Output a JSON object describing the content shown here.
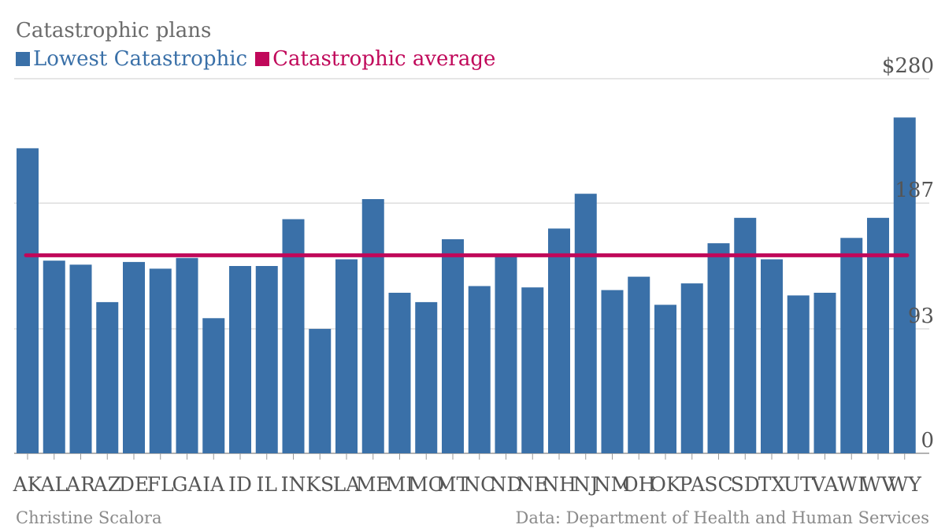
{
  "chart_data": {
    "type": "bar",
    "title": "Catastrophic plans",
    "categories": [
      "AK",
      "AL",
      "AR",
      "AZ",
      "DE",
      "FL",
      "GA",
      "IA",
      "ID",
      "IL",
      "IN",
      "KS",
      "LA",
      "ME",
      "MI",
      "MO",
      "MT",
      "NC",
      "ND",
      "NE",
      "NH",
      "NJ",
      "NM",
      "OH",
      "OK",
      "PA",
      "SC",
      "SD",
      "TX",
      "UT",
      "VA",
      "WI",
      "WV",
      "WY"
    ],
    "series": [
      {
        "name": "Lowest Catastrophic",
        "color": "#3a70a8",
        "values": [
          228,
          144,
          141,
          113,
          143,
          138,
          146,
          101,
          140,
          140,
          175,
          93,
          145,
          190,
          120,
          113,
          160,
          125,
          148,
          124,
          168,
          194,
          122,
          132,
          111,
          127,
          157,
          176,
          145,
          118,
          120,
          161,
          176,
          251
        ]
      },
      {
        "name": "Catastrophic average",
        "color": "#c0085a",
        "type": "line",
        "value": 148
      }
    ],
    "y_ticks": [
      {
        "value": 0,
        "label": "0"
      },
      {
        "value": 93,
        "label": "93"
      },
      {
        "value": 187,
        "label": "187"
      },
      {
        "value": 280,
        "label": "$280"
      }
    ],
    "ylim": [
      0,
      280
    ],
    "grid": true,
    "legend_position": "top-left",
    "xlabel": "",
    "ylabel": ""
  },
  "footer": {
    "author": "Christine Scalora",
    "source": "Data: Department of Health and Human Services"
  }
}
